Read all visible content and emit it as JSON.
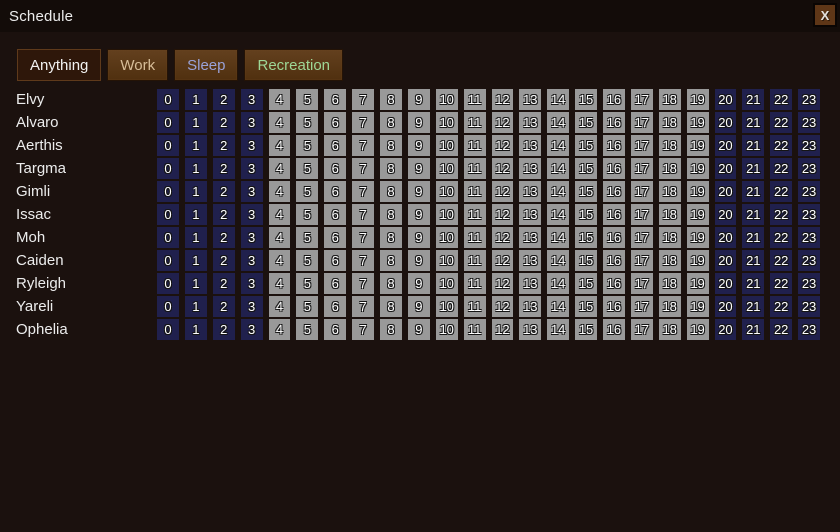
{
  "window": {
    "title": "Schedule",
    "close_label": "X"
  },
  "toolbar": {
    "buttons": [
      {
        "id": "anything",
        "label": "Anything",
        "text_color": "#f2f2f2",
        "selected": true
      },
      {
        "id": "work",
        "label": "Work",
        "text_color": "#d7bd98",
        "selected": false
      },
      {
        "id": "sleep",
        "label": "Sleep",
        "text_color": "#9aa2d8",
        "selected": false
      },
      {
        "id": "recreation",
        "label": "Recreation",
        "text_color": "#9ed796",
        "selected": false
      }
    ]
  },
  "schedule": {
    "hours": [
      0,
      1,
      2,
      3,
      4,
      5,
      6,
      7,
      8,
      9,
      10,
      11,
      12,
      13,
      14,
      15,
      16,
      17,
      18,
      19,
      20,
      21,
      22,
      23
    ],
    "pattern_key": {
      "S": "sleep",
      "A": "anything"
    },
    "cell_colors": {
      "sleep": "#20204d",
      "anything": "#999999"
    },
    "colonists": [
      {
        "name": "Elvy",
        "pattern": "SSSSAAAAAAAAAAAAAAAASSSS"
      },
      {
        "name": "Alvaro",
        "pattern": "SSSSAAAAAAAAAAAAAAAASSSS"
      },
      {
        "name": "Aerthis",
        "pattern": "SSSSAAAAAAAAAAAAAAAASSSS"
      },
      {
        "name": "Targma",
        "pattern": "SSSSAAAAAAAAAAAAAAAASSSS"
      },
      {
        "name": "Gimli",
        "pattern": "SSSSAAAAAAAAAAAAAAAASSSS"
      },
      {
        "name": "Issac",
        "pattern": "SSSSAAAAAAAAAAAAAAAASSSS"
      },
      {
        "name": "Moh",
        "pattern": "SSSSAAAAAAAAAAAAAAAASSSS"
      },
      {
        "name": "Caiden",
        "pattern": "SSSSAAAAAAAAAAAAAAAASSSS"
      },
      {
        "name": "Ryleigh",
        "pattern": "SSSSAAAAAAAAAAAAAAAASSSS"
      },
      {
        "name": "Yareli",
        "pattern": "SSSSAAAAAAAAAAAAAAAASSSS"
      },
      {
        "name": "Ophelia",
        "pattern": "SSSSAAAAAAAAAAAAAAAASSSS"
      }
    ]
  },
  "colors": {
    "page_bg": "#1b110e",
    "titlebar_bg": "#130c09",
    "button_bg": "#5a3516",
    "button_selected_bg": "#2e170a"
  }
}
